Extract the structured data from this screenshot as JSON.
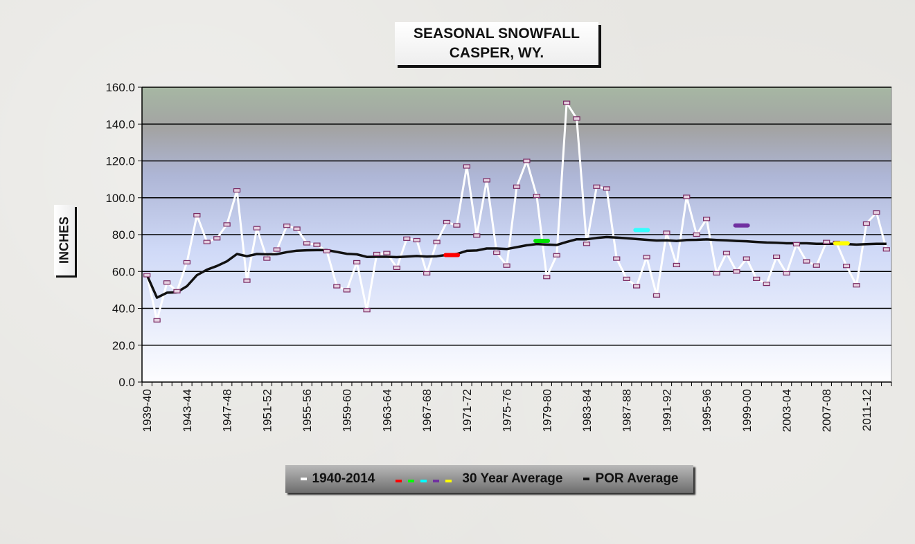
{
  "chart_data": {
    "type": "line",
    "title": "SEASONAL SNOWFALL",
    "subtitle": "CASPER, WY.",
    "ylabel": "INCHES",
    "xlabel": "",
    "ylim": [
      0,
      160
    ],
    "yticks": [
      0,
      20,
      40,
      60,
      80,
      100,
      120,
      140,
      160
    ],
    "ytick_labels": [
      "0.0",
      "20.0",
      "40.0",
      "60.0",
      "80.0",
      "100.0",
      "120.0",
      "140.0",
      "160.0"
    ],
    "grid": true,
    "legend_position": "bottom",
    "categories": [
      "1939-40",
      "1940-41",
      "1941-42",
      "1942-43",
      "1943-44",
      "1944-45",
      "1945-46",
      "1946-47",
      "1947-48",
      "1948-49",
      "1949-50",
      "1950-51",
      "1951-52",
      "1952-53",
      "1953-54",
      "1954-55",
      "1955-56",
      "1956-57",
      "1957-58",
      "1958-59",
      "1959-60",
      "1960-61",
      "1961-62",
      "1962-63",
      "1963-64",
      "1964-65",
      "1965-66",
      "1966-67",
      "1967-68",
      "1968-69",
      "1969-70",
      "1970-71",
      "1971-72",
      "1972-73",
      "1973-74",
      "1974-75",
      "1975-76",
      "1976-77",
      "1977-78",
      "1978-79",
      "1979-80",
      "1980-81",
      "1981-82",
      "1982-83",
      "1983-84",
      "1984-85",
      "1985-86",
      "1986-87",
      "1987-88",
      "1988-89",
      "1989-90",
      "1990-91",
      "1991-92",
      "1992-93",
      "1993-94",
      "1994-95",
      "1995-96",
      "1996-97",
      "1997-98",
      "1998-99",
      "1999-00",
      "2000-01",
      "2001-02",
      "2002-03",
      "2003-04",
      "2004-05",
      "2005-06",
      "2006-07",
      "2007-08",
      "2008-09",
      "2009-10",
      "2010-11",
      "2011-12",
      "2012-13",
      "2013-14"
    ],
    "xtick_labels": [
      "1939-40",
      "1943-44",
      "1947-48",
      "1951-52",
      "1955-56",
      "1959-60",
      "1963-64",
      "1967-68",
      "1971-72",
      "1975-76",
      "1979-80",
      "1983-84",
      "1987-88",
      "1991-92",
      "1995-96",
      "1999-00",
      "2003-04",
      "2007-08",
      "2011-12"
    ],
    "series": [
      {
        "name": "1940-2014",
        "color": "#ffffff",
        "values": [
          58.0,
          33.5,
          54.0,
          49.3,
          65.0,
          90.5,
          76.0,
          78.0,
          85.5,
          104.0,
          55.0,
          83.5,
          67.0,
          71.9,
          84.8,
          83.2,
          75.3,
          74.5,
          71.0,
          52.0,
          49.8,
          65.0,
          39.0,
          69.5,
          70.0,
          62.0,
          77.8,
          77.0,
          59.0,
          76.0,
          86.8,
          85.0,
          117.0,
          79.5,
          109.5,
          70.2,
          63.2,
          106.0,
          120.0,
          101.0,
          57.0,
          68.8,
          151.5,
          143.0,
          75.0,
          106.0,
          105.0,
          67.0,
          56.0,
          52.0,
          67.8,
          47.0,
          81.0,
          63.5,
          100.5,
          80.0,
          88.5,
          59.0,
          70.0,
          60.0,
          67.0,
          56.0,
          53.3,
          68.0,
          59.0,
          74.8,
          65.5,
          63.2,
          76.0,
          75.5,
          63.0,
          52.5,
          86.0,
          92.0,
          72.0
        ]
      },
      {
        "name": "POR Average",
        "color": "#111111",
        "values": [
          58.0,
          45.8,
          48.5,
          48.7,
          52.0,
          58.0,
          61.0,
          63.0,
          65.5,
          69.5,
          68.3,
          69.5,
          69.3,
          69.4,
          70.5,
          71.3,
          71.5,
          71.6,
          71.6,
          70.6,
          69.6,
          69.3,
          67.9,
          68.0,
          68.0,
          67.8,
          68.1,
          68.4,
          68.1,
          68.3,
          69.0,
          69.5,
          71.2,
          71.4,
          72.5,
          72.5,
          72.2,
          73.2,
          74.2,
          74.9,
          74.6,
          74.4,
          76.0,
          77.5,
          77.5,
          78.2,
          78.7,
          78.4,
          78.0,
          77.6,
          77.2,
          76.8,
          76.9,
          76.6,
          77.1,
          77.2,
          77.4,
          77.1,
          76.9,
          76.6,
          76.4,
          76.0,
          75.7,
          75.6,
          75.3,
          75.3,
          75.3,
          75.0,
          75.0,
          75.0,
          74.9,
          74.6,
          74.8,
          75.0,
          75.0
        ]
      }
    ],
    "thirty_year_averages": {
      "name": "30 Year Average",
      "markers": [
        {
          "center": "1969-70",
          "value": 68.9,
          "color": "#ff0000"
        },
        {
          "center": "1978-79",
          "value": 76.6,
          "color": "#00e000"
        },
        {
          "center": "1988-89",
          "value": 82.5,
          "color": "#33ffff"
        },
        {
          "center": "1998-99",
          "value": 85.0,
          "color": "#7030a0"
        },
        {
          "center": "2008-09",
          "value": 75.3,
          "color": "#ffff00"
        }
      ]
    },
    "legend": {
      "series_label": "1940-2014",
      "thirty_label": "30 Year Average",
      "por_label": "POR Average",
      "thirty_colors": [
        "#ff0000",
        "#00ff00",
        "#00ffff",
        "#7030a0",
        "#ffff00"
      ]
    }
  }
}
